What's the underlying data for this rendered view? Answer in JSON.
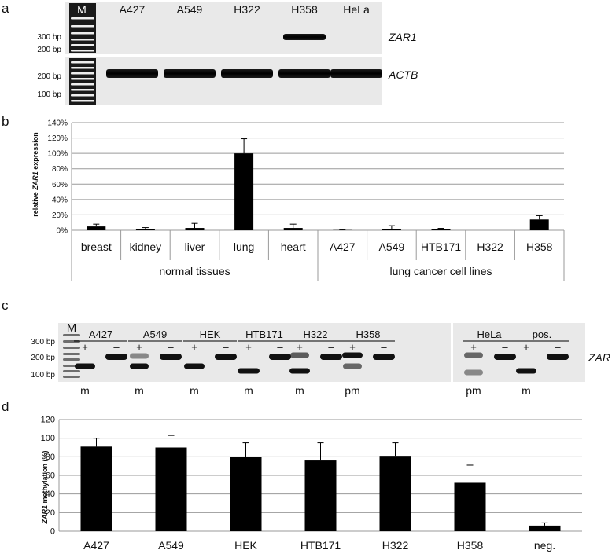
{
  "panels": {
    "a": "a",
    "b": "b",
    "c": "c",
    "d": "d"
  },
  "gel_a": {
    "marker_label": "M",
    "lanes": [
      "A427",
      "A549",
      "H322",
      "H358",
      "HeLa"
    ],
    "zar1_sizes": [
      "300 bp",
      "200 bp"
    ],
    "actb_sizes": [
      "200 bp",
      "100 bp"
    ],
    "gene_top": "ZAR1",
    "gene_bottom": "ACTB",
    "zar1_band_present": [
      false,
      false,
      false,
      true,
      false
    ],
    "actb_band_present": [
      true,
      true,
      true,
      true,
      true
    ]
  },
  "gel_c": {
    "marker_label": "M",
    "sizes": [
      "300 bp",
      "200 bp",
      "100 bp"
    ],
    "gene": "ZAR1",
    "plus": "+",
    "minus": "–",
    "samples": [
      {
        "name": "A427",
        "call": "m"
      },
      {
        "name": "A549",
        "call": "m"
      },
      {
        "name": "HEK",
        "call": "m"
      },
      {
        "name": "HTB171",
        "call": "m"
      },
      {
        "name": "H322",
        "call": "m"
      },
      {
        "name": "H358",
        "call": "pm"
      },
      {
        "name": "HeLa",
        "call": "pm"
      },
      {
        "name": "pos.",
        "call": "m"
      }
    ]
  },
  "chart_data": [
    {
      "type": "bar",
      "panel": "b",
      "ylabel_pre": "relative ",
      "ylabel_gene": "ZAR1",
      "ylabel_post": " expression",
      "ylim": [
        0,
        140
      ],
      "yticks": [
        "0%",
        "20%",
        "40%",
        "60%",
        "80%",
        "100%",
        "120%",
        "140%"
      ],
      "categories": [
        "breast",
        "kidney",
        "liver",
        "lung",
        "heart",
        "A427",
        "A549",
        "HTB171",
        "H322",
        "H358"
      ],
      "values": [
        5,
        1.5,
        3,
        100,
        3,
        0.3,
        2,
        1.5,
        0,
        14
      ],
      "errors": [
        3,
        2,
        6,
        19,
        5,
        0.5,
        4,
        1,
        0,
        5
      ],
      "groups": [
        {
          "label": "normal tissues",
          "span": 5
        },
        {
          "label": "lung cancer cell lines",
          "span": 5
        }
      ],
      "grid": true,
      "bar_color": "#000000"
    },
    {
      "type": "bar",
      "panel": "d",
      "ylabel_gene": "ZAR1",
      "ylabel_post": " methylation (%)",
      "ylim": [
        0,
        120
      ],
      "yticks": [
        "0",
        "20",
        "40",
        "60",
        "80",
        "100",
        "120"
      ],
      "categories": [
        "A427",
        "A549",
        "HEK",
        "HTB171",
        "H322",
        "H358",
        "neg."
      ],
      "values": [
        91,
        90,
        80,
        76,
        81,
        52,
        6
      ],
      "errors": [
        9,
        13,
        15,
        19,
        14,
        19,
        3
      ],
      "grid": true,
      "bar_color": "#000000"
    }
  ]
}
